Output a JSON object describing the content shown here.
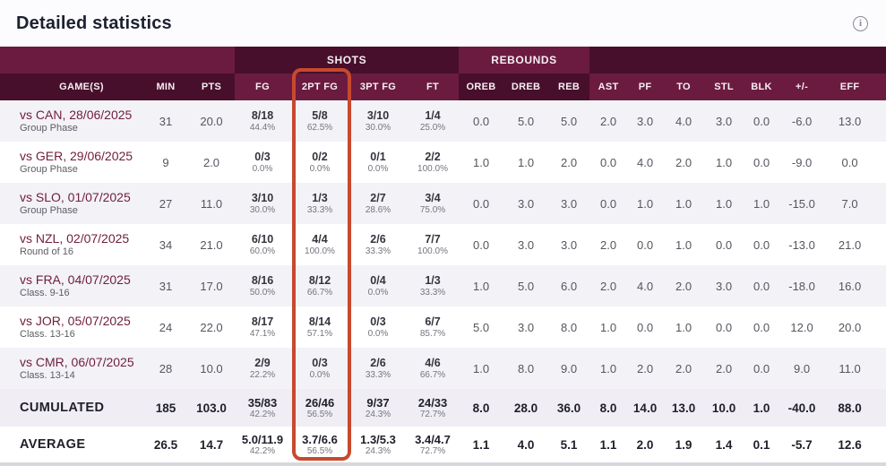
{
  "page": {
    "title": "Detailed statistics",
    "info_icon_glyph": "i"
  },
  "table": {
    "groups": {
      "shots": "SHOTS",
      "rebounds": "REBOUNDS"
    },
    "columns": [
      "GAME(S)",
      "MIN",
      "PTS",
      "FG",
      "2PT FG",
      "3PT FG",
      "FT",
      "OREB",
      "DREB",
      "REB",
      "AST",
      "PF",
      "TO",
      "STL",
      "BLK",
      "+/-",
      "EFF"
    ],
    "highlight": {
      "column": "2PT FG",
      "color": "#c7492e"
    },
    "rows": [
      {
        "game": "vs CAN, 28/06/2025",
        "phase": "Group Phase",
        "min": "31",
        "pts": "20.0",
        "fg": {
          "v": "8/18",
          "pct": "44.4%"
        },
        "fg2": {
          "v": "5/8",
          "pct": "62.5%"
        },
        "fg3": {
          "v": "3/10",
          "pct": "30.0%"
        },
        "ft": {
          "v": "1/4",
          "pct": "25.0%"
        },
        "oreb": "0.0",
        "dreb": "5.0",
        "reb": "5.0",
        "ast": "2.0",
        "pf": "3.0",
        "to": "4.0",
        "stl": "3.0",
        "blk": "0.0",
        "plusminus": "-6.0",
        "eff": "13.0"
      },
      {
        "game": "vs GER, 29/06/2025",
        "phase": "Group Phase",
        "min": "9",
        "pts": "2.0",
        "fg": {
          "v": "0/3",
          "pct": "0.0%"
        },
        "fg2": {
          "v": "0/2",
          "pct": "0.0%"
        },
        "fg3": {
          "v": "0/1",
          "pct": "0.0%"
        },
        "ft": {
          "v": "2/2",
          "pct": "100.0%"
        },
        "oreb": "1.0",
        "dreb": "1.0",
        "reb": "2.0",
        "ast": "0.0",
        "pf": "4.0",
        "to": "2.0",
        "stl": "1.0",
        "blk": "0.0",
        "plusminus": "-9.0",
        "eff": "0.0"
      },
      {
        "game": "vs SLO, 01/07/2025",
        "phase": "Group Phase",
        "min": "27",
        "pts": "11.0",
        "fg": {
          "v": "3/10",
          "pct": "30.0%"
        },
        "fg2": {
          "v": "1/3",
          "pct": "33.3%"
        },
        "fg3": {
          "v": "2/7",
          "pct": "28.6%"
        },
        "ft": {
          "v": "3/4",
          "pct": "75.0%"
        },
        "oreb": "0.0",
        "dreb": "3.0",
        "reb": "3.0",
        "ast": "0.0",
        "pf": "1.0",
        "to": "1.0",
        "stl": "1.0",
        "blk": "1.0",
        "plusminus": "-15.0",
        "eff": "7.0"
      },
      {
        "game": "vs NZL, 02/07/2025",
        "phase": "Round of 16",
        "min": "34",
        "pts": "21.0",
        "fg": {
          "v": "6/10",
          "pct": "60.0%"
        },
        "fg2": {
          "v": "4/4",
          "pct": "100.0%"
        },
        "fg3": {
          "v": "2/6",
          "pct": "33.3%"
        },
        "ft": {
          "v": "7/7",
          "pct": "100.0%"
        },
        "oreb": "0.0",
        "dreb": "3.0",
        "reb": "3.0",
        "ast": "2.0",
        "pf": "0.0",
        "to": "1.0",
        "stl": "0.0",
        "blk": "0.0",
        "plusminus": "-13.0",
        "eff": "21.0"
      },
      {
        "game": "vs FRA, 04/07/2025",
        "phase": "Class. 9-16",
        "min": "31",
        "pts": "17.0",
        "fg": {
          "v": "8/16",
          "pct": "50.0%"
        },
        "fg2": {
          "v": "8/12",
          "pct": "66.7%"
        },
        "fg3": {
          "v": "0/4",
          "pct": "0.0%"
        },
        "ft": {
          "v": "1/3",
          "pct": "33.3%"
        },
        "oreb": "1.0",
        "dreb": "5.0",
        "reb": "6.0",
        "ast": "2.0",
        "pf": "4.0",
        "to": "2.0",
        "stl": "3.0",
        "blk": "0.0",
        "plusminus": "-18.0",
        "eff": "16.0"
      },
      {
        "game": "vs JOR, 05/07/2025",
        "phase": "Class. 13-16",
        "min": "24",
        "pts": "22.0",
        "fg": {
          "v": "8/17",
          "pct": "47.1%"
        },
        "fg2": {
          "v": "8/14",
          "pct": "57.1%"
        },
        "fg3": {
          "v": "0/3",
          "pct": "0.0%"
        },
        "ft": {
          "v": "6/7",
          "pct": "85.7%"
        },
        "oreb": "5.0",
        "dreb": "3.0",
        "reb": "8.0",
        "ast": "1.0",
        "pf": "0.0",
        "to": "1.0",
        "stl": "0.0",
        "blk": "0.0",
        "plusminus": "12.0",
        "eff": "20.0"
      },
      {
        "game": "vs CMR, 06/07/2025",
        "phase": "Class. 13-14",
        "min": "28",
        "pts": "10.0",
        "fg": {
          "v": "2/9",
          "pct": "22.2%"
        },
        "fg2": {
          "v": "0/3",
          "pct": "0.0%"
        },
        "fg3": {
          "v": "2/6",
          "pct": "33.3%"
        },
        "ft": {
          "v": "4/6",
          "pct": "66.7%"
        },
        "oreb": "1.0",
        "dreb": "8.0",
        "reb": "9.0",
        "ast": "1.0",
        "pf": "2.0",
        "to": "2.0",
        "stl": "2.0",
        "blk": "0.0",
        "plusminus": "9.0",
        "eff": "11.0"
      }
    ],
    "summary_rows": [
      {
        "label": "CUMULATED",
        "min": "185",
        "pts": "103.0",
        "fg": {
          "v": "35/83",
          "pct": "42.2%"
        },
        "fg2": {
          "v": "26/46",
          "pct": "56.5%"
        },
        "fg3": {
          "v": "9/37",
          "pct": "24.3%"
        },
        "ft": {
          "v": "24/33",
          "pct": "72.7%"
        },
        "oreb": "8.0",
        "dreb": "28.0",
        "reb": "36.0",
        "ast": "8.0",
        "pf": "14.0",
        "to": "13.0",
        "stl": "10.0",
        "blk": "1.0",
        "plusminus": "-40.0",
        "eff": "88.0"
      },
      {
        "label": "AVERAGE",
        "min": "26.5",
        "pts": "14.7",
        "fg": {
          "v": "5.0/11.9",
          "pct": "42.2%"
        },
        "fg2": {
          "v": "3.7/6.6",
          "pct": "56.5%"
        },
        "fg3": {
          "v": "1.3/5.3",
          "pct": "24.3%"
        },
        "ft": {
          "v": "3.4/4.7",
          "pct": "72.7%"
        },
        "oreb": "1.1",
        "dreb": "4.0",
        "reb": "5.1",
        "ast": "1.1",
        "pf": "2.0",
        "to": "1.9",
        "stl": "1.4",
        "blk": "0.1",
        "plusminus": "-5.7",
        "eff": "12.6"
      }
    ]
  }
}
